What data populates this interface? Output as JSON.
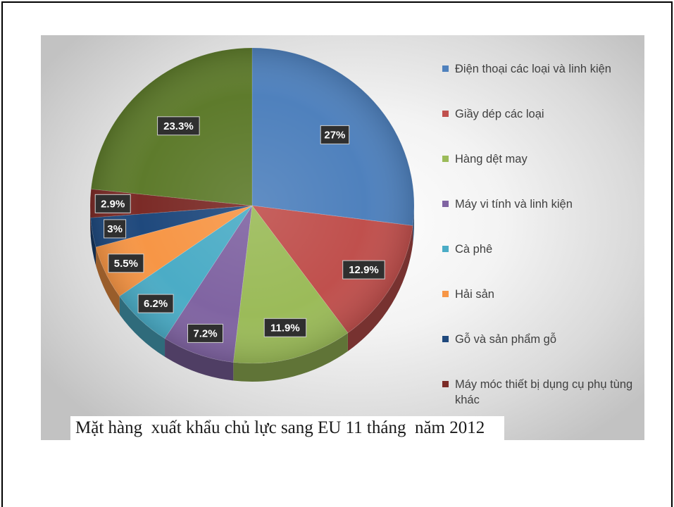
{
  "chart_data": {
    "type": "pie",
    "three_d": true,
    "title": "Mặt hàng  xuất khẩu chủ lực sang EU 11 tháng  năm 2012",
    "categories": [
      "Điện thoại các loại và linh kiện",
      "Giầy dép các loại",
      "Hàng dệt may",
      "Máy vi tính và linh kiện",
      "Cà phê",
      "Hải sản",
      "Gỗ và sản phẩm gỗ",
      "Máy móc thiết bị dụng cụ phụ tùng khác",
      ""
    ],
    "values": [
      27,
      12.9,
      11.9,
      7.2,
      6.2,
      5.5,
      3,
      2.9,
      23.3
    ],
    "data_labels": [
      "27%",
      "12.9%",
      "11.9%",
      "7.2%",
      "6.2%",
      "5.5%",
      "3%",
      "2.9%",
      "23.3%"
    ],
    "colors": [
      "#4F81BD",
      "#C0504D",
      "#9BBB59",
      "#8064A2",
      "#4BACC6",
      "#F79646",
      "#1F497D",
      "#7B2B27",
      "#5E7B2C"
    ],
    "legend_position": "right"
  }
}
